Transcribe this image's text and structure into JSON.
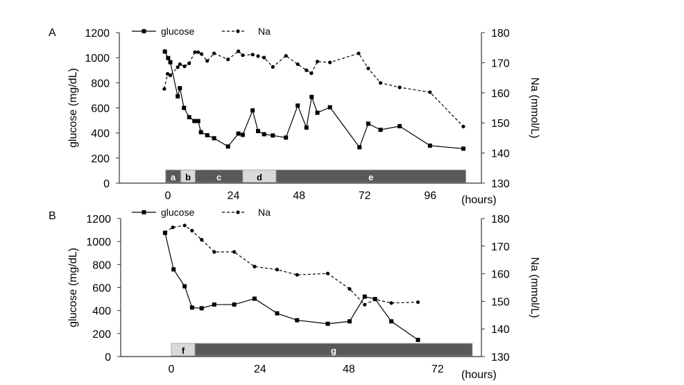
{
  "chart_data": [
    {
      "panel_label": "A",
      "type": "line",
      "xlabel": "(hours)",
      "ylabel_left": "glucose (mg/dL)",
      "ylabel_right": "Na (mmol/L)",
      "xticks": [
        0,
        24,
        48,
        72,
        96
      ],
      "xlim": [
        -18,
        115
      ],
      "ylim_left": [
        0,
        1200
      ],
      "yticks_left": [
        0,
        200,
        400,
        600,
        800,
        1000,
        1200
      ],
      "ylim_right": [
        130,
        180
      ],
      "yticks_right": [
        130,
        140,
        150,
        160,
        170,
        180
      ],
      "grid": false,
      "legend_placement": "top",
      "series": [
        {
          "name": "glucose",
          "axis": "left",
          "style": "solid-square",
          "x": [
            -1.1,
            0.1,
            0.9,
            3.6,
            4.4,
            5.9,
            7.8,
            9.7,
            11.1,
            12.1,
            14.4,
            16.9,
            22,
            25.8,
            27.4,
            31,
            33,
            35.2,
            38.4,
            43.2,
            47.5,
            50.7,
            52.6,
            54.7,
            59.3,
            70.1,
            73.3,
            77.8,
            84.8,
            95.9,
            108.1
          ],
          "y": [
            1049,
            997,
            964,
            692,
            757,
            600,
            526,
            495,
            495,
            406,
            382,
            358,
            292,
            395,
            385,
            580,
            415,
            390,
            380,
            363,
            618,
            443,
            687,
            561,
            605,
            286,
            474,
            425,
            454,
            299,
            275
          ]
        },
        {
          "name": "Na",
          "axis": "right",
          "style": "dashed-circle",
          "x": [
            -1.3,
            -0.1,
            0.9,
            3.6,
            4.4,
            6.1,
            7.8,
            9.9,
            11.1,
            12.3,
            14.4,
            16.9,
            22,
            25.8,
            27.4,
            31,
            33,
            35.2,
            38.4,
            43.2,
            47.5,
            50.7,
            52.5,
            54.7,
            59.3,
            69.8,
            73.3,
            77.8,
            84.8,
            95.9,
            108.1
          ],
          "y": [
            161.3,
            166.3,
            165.8,
            168.5,
            169.5,
            168.8,
            169.8,
            173.5,
            173.5,
            172.9,
            170.6,
            173.1,
            171.1,
            173.8,
            172.5,
            172.7,
            172.2,
            171.7,
            168.6,
            172.3,
            169.5,
            167.5,
            166.5,
            170.4,
            170.1,
            173.1,
            168.1,
            163.3,
            161.8,
            160.2,
            148.8
          ]
        }
      ],
      "phases": [
        {
          "label": "a",
          "start": -0.8,
          "end": 4.6,
          "shade": "dark"
        },
        {
          "label": "b",
          "start": 4.8,
          "end": 10,
          "shade": "light"
        },
        {
          "label": "c",
          "start": 10,
          "end": 27.4,
          "shade": "dark"
        },
        {
          "label": "d",
          "start": 27.4,
          "end": 39.6,
          "shade": "light"
        },
        {
          "label": "e",
          "start": 39.6,
          "end": 109,
          "shade": "dark"
        }
      ]
    },
    {
      "panel_label": "B",
      "type": "line",
      "xlabel": "(hours)",
      "ylabel_left": "glucose (mg/dL)",
      "ylabel_right": "Na (mmol/L)",
      "xticks": [
        0,
        24,
        48,
        72
      ],
      "xlim": [
        -13.7,
        84
      ],
      "ylim_left": [
        0,
        1200
      ],
      "yticks_left": [
        0,
        200,
        400,
        600,
        800,
        1000,
        1200
      ],
      "ylim_right": [
        130,
        180
      ],
      "yticks_right": [
        130,
        140,
        150,
        160,
        170,
        180
      ],
      "grid": false,
      "legend_placement": "top",
      "series": [
        {
          "name": "glucose",
          "axis": "left",
          "style": "solid-square",
          "x": [
            -1.7,
            0.6,
            3.6,
            5.6,
            8.2,
            11.6,
            17,
            22.5,
            28.6,
            34,
            42.3,
            48.2,
            52.3,
            55.1,
            59.5,
            66.7
          ],
          "y": [
            1075,
            758,
            611,
            426,
            420,
            452,
            452,
            503,
            376,
            316,
            285,
            306,
            521,
            500,
            306,
            145
          ]
        },
        {
          "name": "Na",
          "axis": "right",
          "style": "dashed-circle",
          "x": [
            -1.7,
            0.4,
            3.6,
            5.6,
            8.2,
            11.6,
            17,
            22.5,
            28.6,
            34,
            42.3,
            48.2,
            52.3,
            55.1,
            59.5,
            66.7
          ],
          "y": [
            175,
            176.8,
            177.5,
            175.6,
            172.3,
            167.9,
            167.9,
            162.6,
            161.5,
            159.6,
            160.1,
            154.5,
            148.8,
            150.7,
            149.4,
            149.7
          ]
        }
      ],
      "phases": [
        {
          "label": "f",
          "start": 0,
          "end": 6.4,
          "shade": "light"
        },
        {
          "label": "g",
          "start": 6.4,
          "end": 81.4,
          "shade": "dark"
        }
      ]
    }
  ],
  "colors": {
    "line": "#000000",
    "phase_dark": "#595959",
    "phase_light": "#d9d9d9",
    "axis": "#333333"
  }
}
